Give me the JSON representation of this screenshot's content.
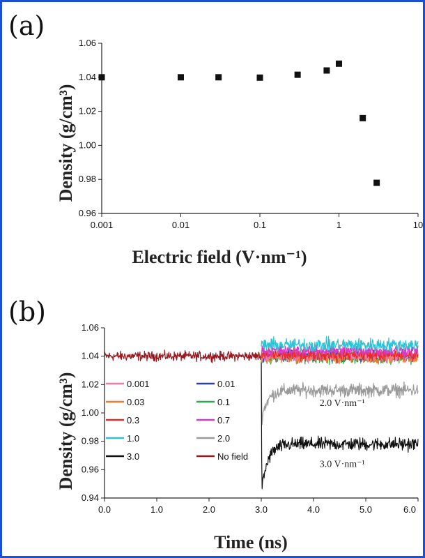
{
  "chart_data": [
    {
      "panel": "(a)",
      "type": "scatter",
      "xscale": "log",
      "xlim": [
        0.001,
        10
      ],
      "ylim": [
        0.96,
        1.06
      ],
      "xticks": [
        "0.001",
        "0.01",
        "0.1",
        "1",
        "10"
      ],
      "yticks": [
        "0.96",
        "0.98",
        "1.00",
        "1.02",
        "1.04",
        "1.06"
      ],
      "xlabel": "Electric field (V·nm⁻¹)",
      "ylabel": "Density (g/cm³)",
      "grid": false,
      "points": [
        {
          "x": 0.001,
          "y": 1.04
        },
        {
          "x": 0.01,
          "y": 1.04
        },
        {
          "x": 0.03,
          "y": 1.04
        },
        {
          "x": 0.1,
          "y": 1.0398
        },
        {
          "x": 0.3,
          "y": 1.0415
        },
        {
          "x": 0.7,
          "y": 1.044
        },
        {
          "x": 1.0,
          "y": 1.048
        },
        {
          "x": 2.0,
          "y": 1.016
        },
        {
          "x": 3.0,
          "y": 0.978
        }
      ]
    },
    {
      "panel": "(b)",
      "type": "line",
      "xlim": [
        0,
        6
      ],
      "ylim": [
        0.94,
        1.06
      ],
      "xticks": [
        "0.0",
        "1.0",
        "2.0",
        "3.0",
        "4.0",
        "5.0",
        "6.0"
      ],
      "yticks": [
        "0.94",
        "0.96",
        "0.98",
        "1.00",
        "1.02",
        "1.04",
        "1.06"
      ],
      "xlabel": "Time (ns)",
      "ylabel": "Density (g/cm³)",
      "legend_position": "inside-left",
      "annotations": [
        {
          "text": "2.0 V·nm⁻¹",
          "x": 4.55,
          "y": 1.005
        },
        {
          "text": "3.0 V·nm⁻¹",
          "x": 4.55,
          "y": 0.962
        }
      ],
      "series": [
        {
          "name": "0.001",
          "color": "#f07aa8",
          "start": 3.0,
          "level": 1.04,
          "noise": 0.003
        },
        {
          "name": "0.01",
          "color": "#2f3fa8",
          "start": 3.0,
          "level": 1.04,
          "noise": 0.003
        },
        {
          "name": "0.03",
          "color": "#f27a2a",
          "start": 3.0,
          "level": 1.039,
          "noise": 0.003
        },
        {
          "name": "0.1",
          "color": "#2ea84a",
          "start": 3.0,
          "level": 1.039,
          "noise": 0.003
        },
        {
          "name": "0.3",
          "color": "#e82a2a",
          "start": 3.0,
          "level": 1.041,
          "noise": 0.003
        },
        {
          "name": "0.7",
          "color": "#d83ac8",
          "start": 3.0,
          "level": 1.044,
          "noise": 0.003
        },
        {
          "name": "1.0",
          "color": "#2cc4d4",
          "start": 3.0,
          "level": 1.048,
          "noise": 0.0035
        },
        {
          "name": "2.0",
          "color": "#9a9a9a",
          "start": 3.0,
          "level": 1.016,
          "noise": 0.0035
        },
        {
          "name": "3.0",
          "color": "#111111",
          "start": 3.0,
          "level": 0.978,
          "noise": 0.0035
        },
        {
          "name": "No field",
          "color": "#9a1a20",
          "start": 0.0,
          "end": 3.0,
          "level": 1.04,
          "noise": 0.0025
        }
      ]
    }
  ]
}
